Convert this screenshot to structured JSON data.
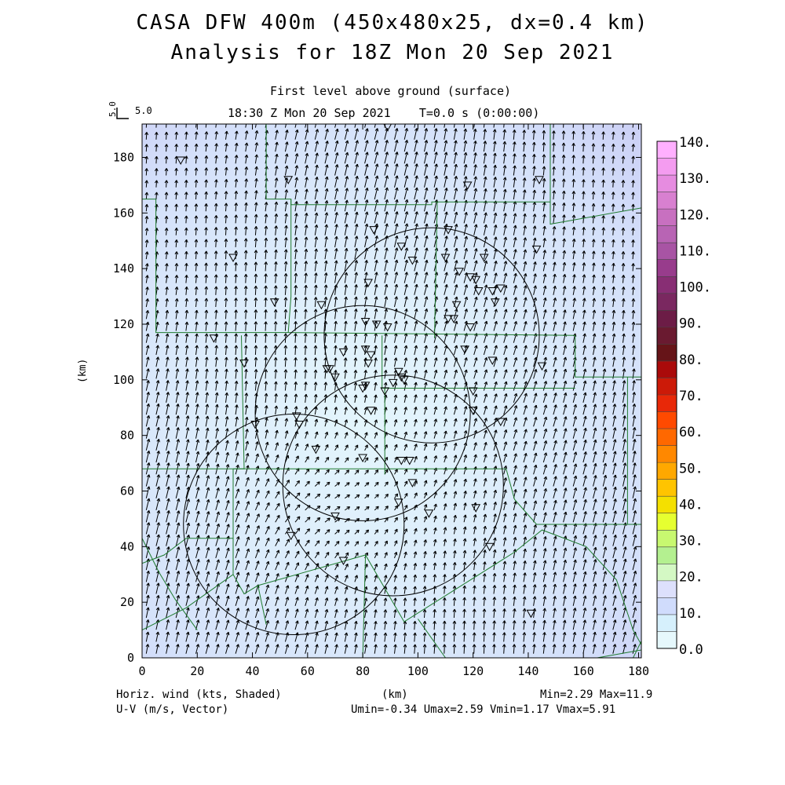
{
  "chart_data": {
    "type": "heatmap",
    "title": "CASA DFW 400m (450x480x25, dx=0.4 km)",
    "subtitle": "Analysis for 18Z Mon 20 Sep 2021",
    "level_label": "First level above ground (surface)",
    "time_label": "18:30 Z Mon 20 Sep 2021",
    "elapsed_label": "T=0.0 s (0:00:00)",
    "reference_vector": {
      "label": "5.0",
      "magnitude": 5.0
    },
    "xlabel": "(km)",
    "ylabel": "(km)",
    "xlim": [
      0,
      181
    ],
    "ylim": [
      0,
      192
    ],
    "xticks": [
      0,
      20,
      40,
      60,
      80,
      100,
      120,
      140,
      160,
      180
    ],
    "yticks": [
      0,
      20,
      40,
      60,
      80,
      100,
      120,
      140,
      160,
      180
    ],
    "colorbar": {
      "ticks": [
        "140.",
        "130.",
        "120.",
        "110.",
        "100.",
        "90.",
        "80.",
        "70.",
        "60.",
        "50.",
        "40.",
        "30.",
        "20.",
        "10.",
        "0.0"
      ],
      "bands": [
        "#ffb0ff",
        "#f49cf0",
        "#e68ce0",
        "#d880d0",
        "#c870c0",
        "#b864b4",
        "#a854a4",
        "#983c8c",
        "#882e74",
        "#7a2860",
        "#6c1c46",
        "#6a1a30",
        "#661418",
        "#aa0a0a",
        "#cc1a08",
        "#e82808",
        "#ff4a00",
        "#ff6800",
        "#ff8800",
        "#ffa800",
        "#ffc400",
        "#f4e000",
        "#e6ff30",
        "#c8f870",
        "#b4f090",
        "#d4f8c4",
        "#dde0fc",
        "#d0dcfc",
        "#d6f0fc",
        "#e6f8fc"
      ]
    },
    "footer_left": [
      "Horiz. wind (kts, Shaded)",
      "U-V (m/s, Vector)"
    ],
    "footer_center": "(km)",
    "footer_right": [
      "Min=2.29 Max=11.9",
      "Umin=-0.34 Umax=2.59 Vmin=1.17 Vmax=5.91"
    ],
    "stats": {
      "min": 2.29,
      "max": 11.9,
      "umin": -0.34,
      "umax": 2.59,
      "vmin": 1.17,
      "vmax": 5.91
    },
    "radar_rings": [
      {
        "center": [
          105,
          116
        ],
        "radius": 39
      },
      {
        "center": [
          80,
          88
        ],
        "radius": 39
      },
      {
        "center": [
          55,
          48
        ],
        "radius": 40
      },
      {
        "center": [
          91,
          62
        ],
        "radius": 40
      }
    ],
    "stations": [
      [
        14,
        179
      ],
      [
        89,
        191
      ],
      [
        53,
        172
      ],
      [
        118,
        170
      ],
      [
        144,
        172
      ],
      [
        84,
        154
      ],
      [
        111,
        154
      ],
      [
        94,
        148
      ],
      [
        98,
        143
      ],
      [
        110,
        144
      ],
      [
        124,
        144
      ],
      [
        143,
        147
      ],
      [
        33,
        144
      ],
      [
        115,
        139
      ],
      [
        119,
        137
      ],
      [
        121,
        136
      ],
      [
        82,
        135
      ],
      [
        122,
        132
      ],
      [
        127,
        132
      ],
      [
        130,
        133
      ],
      [
        128,
        128
      ],
      [
        114,
        127
      ],
      [
        65,
        127
      ],
      [
        48,
        128
      ],
      [
        81,
        121
      ],
      [
        85,
        120
      ],
      [
        89,
        119
      ],
      [
        111,
        122
      ],
      [
        113,
        122
      ],
      [
        119,
        119
      ],
      [
        26,
        115
      ],
      [
        73,
        110
      ],
      [
        81,
        111
      ],
      [
        117,
        111
      ],
      [
        83,
        109
      ],
      [
        82,
        106
      ],
      [
        127,
        107
      ],
      [
        145,
        105
      ],
      [
        37,
        106
      ],
      [
        67,
        104
      ],
      [
        68,
        104
      ],
      [
        70,
        101
      ],
      [
        93,
        103
      ],
      [
        81,
        98
      ],
      [
        80,
        97
      ],
      [
        88,
        96
      ],
      [
        91,
        99
      ],
      [
        94,
        101
      ],
      [
        95,
        100
      ],
      [
        120,
        96
      ],
      [
        120,
        89
      ],
      [
        83,
        89
      ],
      [
        130,
        85
      ],
      [
        56,
        87
      ],
      [
        57,
        84
      ],
      [
        41,
        84
      ],
      [
        63,
        75
      ],
      [
        80,
        72
      ],
      [
        94,
        71
      ],
      [
        97,
        71
      ],
      [
        98,
        63
      ],
      [
        93,
        56
      ],
      [
        70,
        51
      ],
      [
        104,
        52
      ],
      [
        121,
        54
      ],
      [
        54,
        44
      ],
      [
        73,
        35
      ],
      [
        126,
        40
      ],
      [
        141,
        16
      ]
    ],
    "boundaries": [
      [
        [
          45,
          192
        ],
        [
          45,
          165
        ]
      ],
      [
        [
          45,
          165
        ],
        [
          54,
          165
        ],
        [
          54,
          163
        ],
        [
          105,
          163
        ],
        [
          105,
          164
        ],
        [
          148,
          164
        ]
      ],
      [
        [
          148,
          192
        ],
        [
          148,
          156
        ],
        [
          182,
          162
        ]
      ],
      [
        [
          5,
          165
        ],
        [
          5,
          117
        ],
        [
          53,
          117
        ]
      ],
      [
        [
          53,
          117
        ],
        [
          54,
          130
        ],
        [
          54,
          165
        ]
      ],
      [
        [
          53,
          117
        ],
        [
          157,
          116
        ],
        [
          157,
          101
        ],
        [
          182,
          101
        ]
      ],
      [
        [
          107,
          164
        ],
        [
          106,
          115
        ]
      ],
      [
        [
          87,
          116
        ],
        [
          87,
          97
        ],
        [
          157,
          97
        ]
      ],
      [
        [
          36,
          116
        ],
        [
          37,
          68
        ],
        [
          0,
          68
        ]
      ],
      [
        [
          33,
          68
        ],
        [
          132,
          68
        ]
      ],
      [
        [
          88,
          97
        ],
        [
          88,
          66
        ]
      ],
      [
        [
          33,
          68
        ],
        [
          33,
          30
        ]
      ],
      [
        [
          0,
          34
        ],
        [
          8,
          37
        ],
        [
          16,
          43
        ],
        [
          33,
          43
        ]
      ],
      [
        [
          0,
          10
        ],
        [
          16,
          18
        ],
        [
          33,
          30
        ]
      ],
      [
        [
          33,
          30
        ],
        [
          37,
          23
        ],
        [
          42,
          26
        ],
        [
          81,
          37
        ],
        [
          95,
          13
        ],
        [
          135,
          38
        ],
        [
          145,
          46
        ],
        [
          161,
          40
        ],
        [
          172,
          28
        ],
        [
          178,
          10
        ],
        [
          182,
          3
        ],
        [
          165,
          0
        ]
      ],
      [
        [
          0,
          43
        ],
        [
          6,
          31
        ],
        [
          12,
          21
        ],
        [
          20,
          10
        ]
      ],
      [
        [
          81,
          37
        ],
        [
          80,
          0
        ]
      ],
      [
        [
          100,
          14
        ],
        [
          110,
          0
        ]
      ],
      [
        [
          42,
          26
        ],
        [
          45,
          12
        ]
      ],
      [
        [
          132,
          68
        ],
        [
          135,
          57
        ],
        [
          143,
          48
        ],
        [
          182,
          48
        ]
      ],
      [
        [
          176,
          101
        ],
        [
          176,
          48
        ]
      ],
      [
        [
          182,
          8
        ],
        [
          178,
          0
        ]
      ],
      [
        [
          5,
          165
        ],
        [
          0,
          165
        ]
      ]
    ]
  }
}
